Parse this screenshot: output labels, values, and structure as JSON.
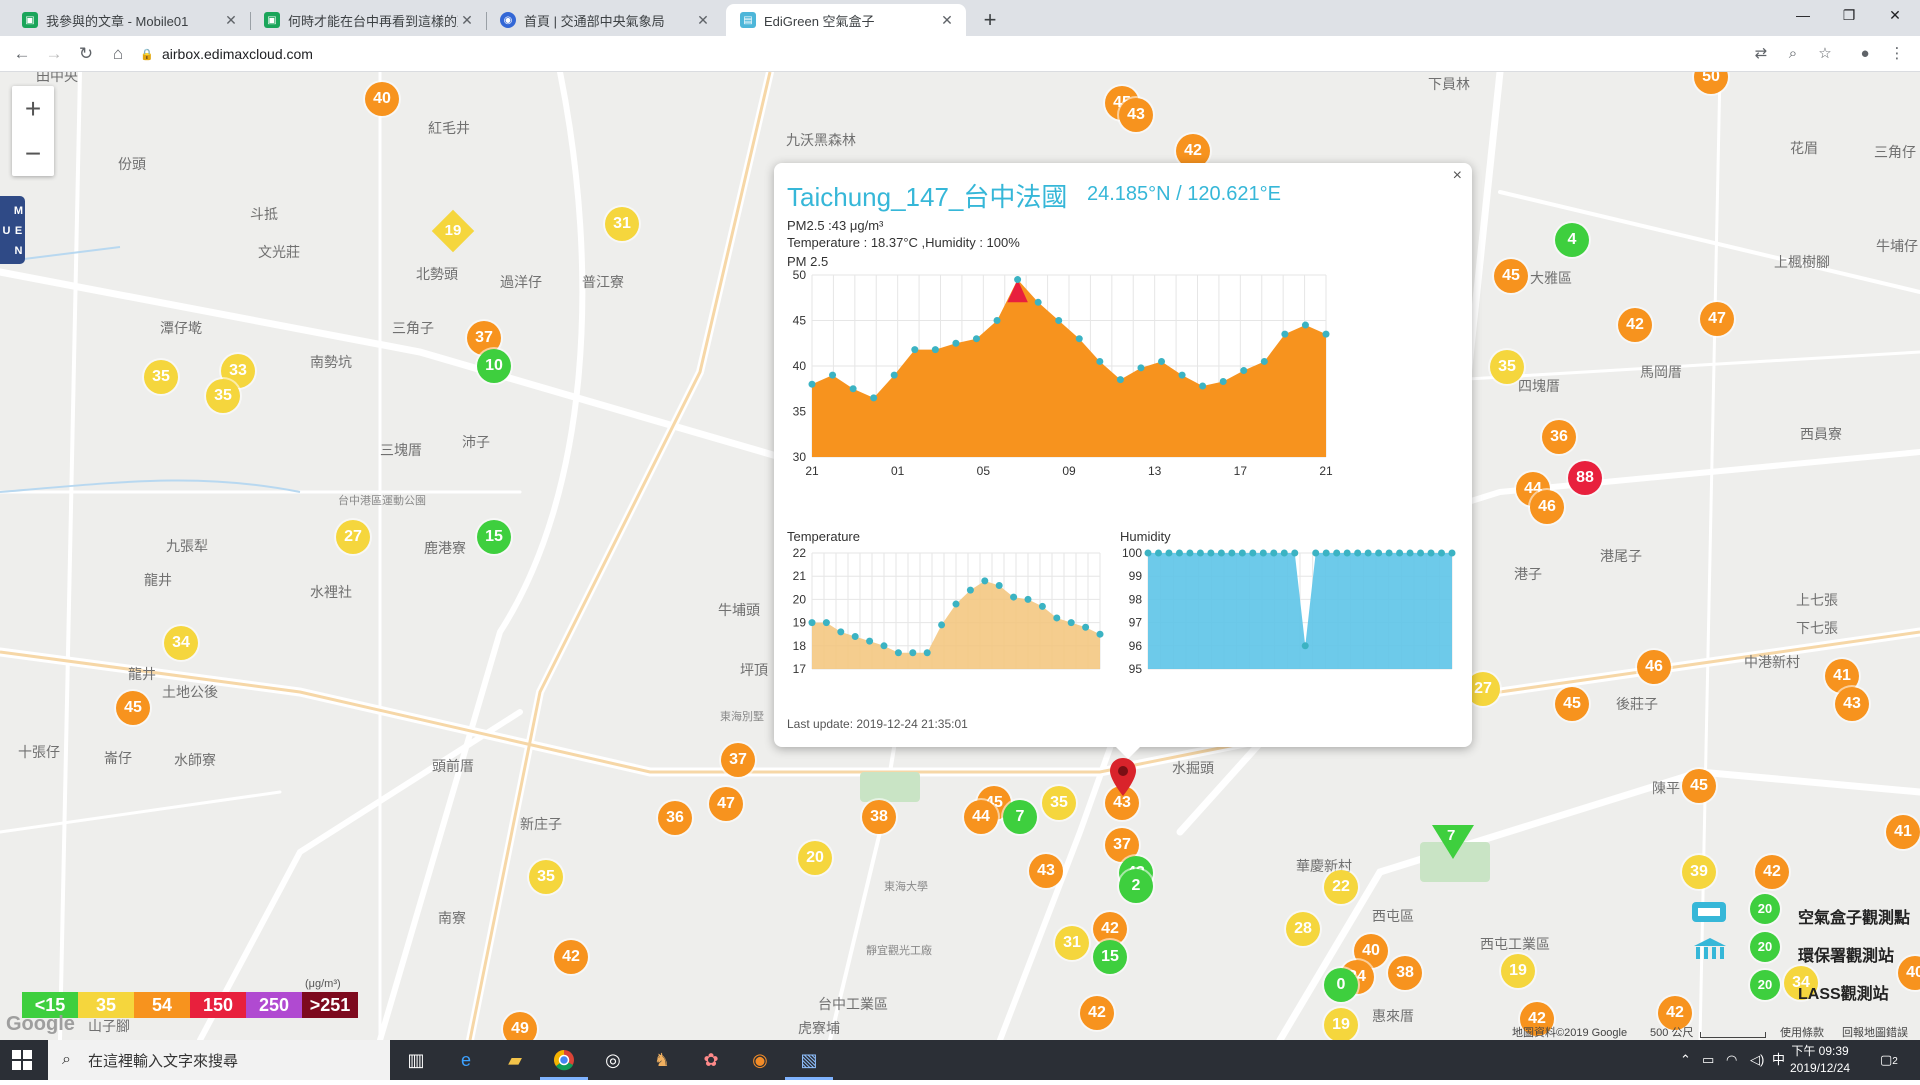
{
  "browser": {
    "tabs": [
      {
        "title": "我參與的文章 - Mobile01",
        "favicon_color": "#1aa55a"
      },
      {
        "title": "何時才能在台中再看到這樣的藍天",
        "favicon_color": "#1aa55a"
      },
      {
        "title": "首頁 | 交通部中央氣象局",
        "favicon_color": "#3367d6"
      },
      {
        "title": "EdiGreen 空氣盒子",
        "favicon_color": "#4db6d9"
      }
    ],
    "url": "airbox.edimaxcloud.com",
    "new_tab": "+"
  },
  "map": {
    "zoom_in": "+",
    "zoom_out": "−",
    "menu_label": "M E N U",
    "place_labels": [
      "田中央",
      "紅毛井",
      "份頭",
      "斗抵",
      "文光莊",
      "北勢頭",
      "過洋仔",
      "普江寮",
      "三角子",
      "南勢坑",
      "潭仔墘",
      "三塊厝",
      "沛子",
      "台中港區運動公園",
      "九張犁",
      "鹿港寮",
      "龍井",
      "水裡社",
      "牛埔頭",
      "龍井",
      "土地公後",
      "十張仔",
      "崙仔",
      "水師寮",
      "頭前厝",
      "新庄子",
      "南寮",
      "坪頂",
      "東海別墅",
      "水掘頭",
      "靜宜觀光工廠",
      "台中工業區",
      "虎寮埔",
      "華慶新村",
      "西屯區",
      "惠來厝",
      "西屯工業區",
      "九沃黑森林",
      "下員林",
      "花眉",
      "三角仔",
      "大雅區",
      "上楓樹腳",
      "牛埔仔",
      "馬岡厝",
      "四塊厝",
      "西員寮",
      "港子",
      "港尾子",
      "上七張",
      "中港新村",
      "下七張",
      "後莊子",
      "陳平",
      "山子腳",
      "東海大學"
    ],
    "markers": [
      {
        "v": "40",
        "c": "orange"
      },
      {
        "v": "45",
        "c": "orange"
      },
      {
        "v": "43",
        "c": "orange"
      },
      {
        "v": "42",
        "c": "orange"
      },
      {
        "v": "50",
        "c": "orange"
      },
      {
        "v": "31",
        "c": "yellow"
      },
      {
        "v": "37",
        "c": "orange"
      },
      {
        "v": "10",
        "c": "green"
      },
      {
        "v": "35",
        "c": "yellow"
      },
      {
        "v": "33",
        "c": "yellow"
      },
      {
        "v": "35",
        "c": "yellow"
      },
      {
        "v": "27",
        "c": "yellow"
      },
      {
        "v": "15",
        "c": "green"
      },
      {
        "v": "34",
        "c": "yellow"
      },
      {
        "v": "45",
        "c": "orange"
      },
      {
        "v": "4",
        "c": "green"
      },
      {
        "v": "45",
        "c": "orange"
      },
      {
        "v": "42",
        "c": "orange"
      },
      {
        "v": "47",
        "c": "orange"
      },
      {
        "v": "35",
        "c": "yellow"
      },
      {
        "v": "36",
        "c": "orange"
      },
      {
        "v": "88",
        "c": "red"
      },
      {
        "v": "44",
        "c": "orange"
      },
      {
        "v": "46",
        "c": "orange"
      },
      {
        "v": "27",
        "c": "yellow"
      },
      {
        "v": "46",
        "c": "orange"
      },
      {
        "v": "45",
        "c": "orange"
      },
      {
        "v": "41",
        "c": "orange"
      },
      {
        "v": "43",
        "c": "orange"
      },
      {
        "v": "45",
        "c": "orange"
      },
      {
        "v": "41",
        "c": "orange"
      },
      {
        "v": "39",
        "c": "orange"
      },
      {
        "v": "42",
        "c": "orange"
      },
      {
        "v": "37",
        "c": "orange"
      },
      {
        "v": "36",
        "c": "orange"
      },
      {
        "v": "47",
        "c": "orange"
      },
      {
        "v": "38",
        "c": "orange"
      },
      {
        "v": "20",
        "c": "yellow"
      },
      {
        "v": "45",
        "c": "orange"
      },
      {
        "v": "44",
        "c": "orange"
      },
      {
        "v": "7",
        "c": "green"
      },
      {
        "v": "35",
        "c": "yellow"
      },
      {
        "v": "43",
        "c": "orange"
      },
      {
        "v": "37",
        "c": "orange"
      },
      {
        "v": "43",
        "c": "green"
      },
      {
        "v": "2",
        "c": "green"
      },
      {
        "v": "43",
        "c": "orange"
      },
      {
        "v": "42",
        "c": "orange"
      },
      {
        "v": "31",
        "c": "yellow"
      },
      {
        "v": "15",
        "c": "green"
      },
      {
        "v": "42",
        "c": "orange"
      },
      {
        "v": "35",
        "c": "yellow"
      },
      {
        "v": "42",
        "c": "orange"
      },
      {
        "v": "49",
        "c": "orange"
      },
      {
        "v": "22",
        "c": "yellow"
      },
      {
        "v": "28",
        "c": "yellow"
      },
      {
        "v": "40",
        "c": "orange"
      },
      {
        "v": "34",
        "c": "orange"
      },
      {
        "v": "38",
        "c": "orange"
      },
      {
        "v": "0",
        "c": "green"
      },
      {
        "v": "19",
        "c": "yellow"
      },
      {
        "v": "19",
        "c": "yellow"
      },
      {
        "v": "42",
        "c": "orange"
      },
      {
        "v": "42",
        "c": "orange"
      },
      {
        "v": "34",
        "c": "yellow"
      },
      {
        "v": "40",
        "c": "orange"
      }
    ],
    "diamond_marker": "19",
    "triangle_marker": "7",
    "legend_unit": "(μg/m³)",
    "legend": [
      {
        "label": "<15",
        "color": "#3ecf3e"
      },
      {
        "label": "35",
        "color": "#f5d63d"
      },
      {
        "label": "54",
        "color": "#f7931e"
      },
      {
        "label": "150",
        "color": "#e8203d"
      },
      {
        "label": "250",
        "color": "#b04ad1"
      },
      {
        "label": ">251",
        "color": "#7d0a1e"
      }
    ],
    "google_logo": "Google",
    "right_legend": [
      {
        "label": "空氣盒子觀測點",
        "value": "20"
      },
      {
        "label": "環保署觀測站",
        "value": "20"
      },
      {
        "label": "LASS觀測站",
        "value": "20"
      }
    ],
    "footer": {
      "map_data": "地圖資料©2019 Google",
      "scale": "500 公尺",
      "terms": "使用條款",
      "report": "回報地圖錯誤"
    }
  },
  "popup": {
    "station": "Taichung_147_台中法國",
    "coords": "24.185°N / 120.621°E",
    "pm25_line": "PM2.5 :43 μg/m³",
    "temp_hum_line": "Temperature : 18.37°C ,Humidity : 100%",
    "chart_label": "PM 2.5",
    "temp_label": "Temperature",
    "hum_label": "Humidity",
    "last_update": "Last update: 2019-12-24 21:35:01",
    "close": "×"
  },
  "chart_data": [
    {
      "type": "area",
      "title": "PM 2.5",
      "x_ticks": [
        "21",
        "01",
        "05",
        "09",
        "13",
        "17",
        "21"
      ],
      "ylim": [
        30,
        50
      ],
      "y_ticks": [
        30,
        35,
        40,
        45,
        50
      ],
      "values": [
        38,
        39,
        37.5,
        36.5,
        39,
        41.8,
        41.8,
        42.5,
        43,
        45,
        49.5,
        47,
        45,
        43,
        40.5,
        38.5,
        39.8,
        40.5,
        39,
        37.8,
        38.3,
        39.5,
        40.5,
        43.5,
        44.5,
        43.5
      ],
      "fill": "#f7931e",
      "peak_fill": "#e8203d"
    },
    {
      "type": "area",
      "title": "Temperature",
      "ylim": [
        17,
        22
      ],
      "y_ticks": [
        17,
        18,
        19,
        20,
        21,
        22
      ],
      "values": [
        19,
        19,
        18.6,
        18.4,
        18.2,
        18.0,
        17.7,
        17.7,
        17.7,
        18.9,
        19.8,
        20.4,
        20.8,
        20.6,
        20.1,
        20.0,
        19.7,
        19.2,
        19.0,
        18.8,
        18.5
      ],
      "fill": "#f3c47a"
    },
    {
      "type": "area",
      "title": "Humidity",
      "ylim": [
        95,
        100
      ],
      "y_ticks": [
        95,
        96,
        97,
        98,
        99,
        100
      ],
      "values": [
        100,
        100,
        100,
        100,
        100,
        100,
        100,
        100,
        100,
        100,
        100,
        100,
        100,
        100,
        100,
        96,
        100,
        100,
        100,
        100,
        100,
        100,
        100,
        100,
        100,
        100,
        100,
        100,
        100,
        100
      ],
      "fill": "#5dc4e8"
    }
  ],
  "taskbar": {
    "search_placeholder": "在這裡輸入文字來搜尋",
    "time": "下午 09:39",
    "date": "2019/12/24",
    "ime": "中",
    "notif": "2"
  }
}
